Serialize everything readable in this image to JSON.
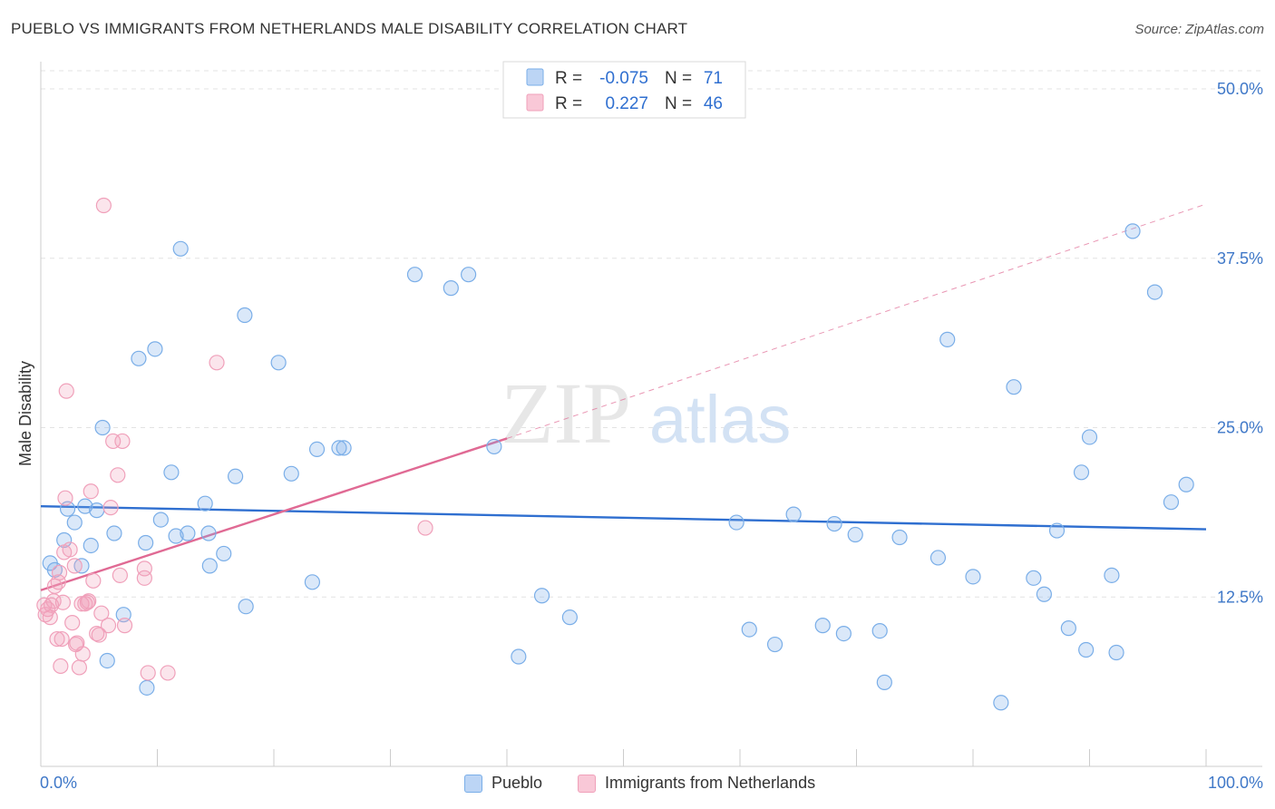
{
  "title": "PUEBLO VS IMMIGRANTS FROM NETHERLANDS MALE DISABILITY CORRELATION CHART",
  "source": "Source: ZipAtlas.com",
  "watermark": {
    "zip": "ZIP",
    "atlas": "atlas"
  },
  "stats": [
    {
      "r_label": "R =",
      "r_value": "-0.075",
      "n_label": "N =",
      "n_value": "71",
      "color": "#7aaee8"
    },
    {
      "r_label": "R =",
      "r_value": "0.227",
      "n_label": "N =",
      "n_value": "46",
      "color": "#f0a0ba"
    }
  ],
  "chart_data": {
    "type": "scatter",
    "xlabel": "",
    "ylabel": "Male Disability",
    "xlim": [
      0,
      100
    ],
    "ylim": [
      0,
      50
    ],
    "x_tick_labels": [
      "0.0%",
      "100.0%"
    ],
    "y_ticks": [
      12.5,
      25.0,
      37.5,
      50.0
    ],
    "y_tick_labels": [
      "12.5%",
      "25.0%",
      "37.5%",
      "50.0%"
    ],
    "grid": true,
    "legend": {
      "placement": "bottom-center"
    },
    "series": [
      {
        "name": "Pueblo",
        "color": "#7aaee8",
        "line_color": "#2f6fd0",
        "trend": {
          "x": [
            0,
            100
          ],
          "y": [
            19.2,
            17.5
          ]
        },
        "points": [
          [
            0.8,
            15.0
          ],
          [
            1.2,
            14.5
          ],
          [
            2.0,
            16.7
          ],
          [
            2.3,
            19.0
          ],
          [
            2.9,
            18.0
          ],
          [
            3.5,
            14.8
          ],
          [
            3.8,
            19.2
          ],
          [
            4.3,
            16.3
          ],
          [
            4.8,
            18.9
          ],
          [
            5.3,
            25.0
          ],
          [
            5.7,
            7.8
          ],
          [
            6.3,
            17.2
          ],
          [
            7.1,
            11.2
          ],
          [
            8.4,
            30.1
          ],
          [
            9.0,
            16.5
          ],
          [
            9.1,
            5.8
          ],
          [
            9.8,
            30.8
          ],
          [
            10.3,
            18.2
          ],
          [
            11.2,
            21.7
          ],
          [
            11.6,
            17.0
          ],
          [
            12.0,
            38.2
          ],
          [
            12.6,
            17.2
          ],
          [
            14.1,
            19.4
          ],
          [
            14.5,
            14.8
          ],
          [
            14.4,
            17.2
          ],
          [
            15.7,
            15.7
          ],
          [
            16.7,
            21.4
          ],
          [
            17.6,
            11.8
          ],
          [
            17.5,
            33.3
          ],
          [
            20.4,
            29.8
          ],
          [
            21.5,
            21.6
          ],
          [
            23.3,
            13.6
          ],
          [
            23.7,
            23.4
          ],
          [
            25.6,
            23.5
          ],
          [
            26.0,
            23.5
          ],
          [
            32.1,
            36.3
          ],
          [
            35.2,
            35.3
          ],
          [
            36.7,
            36.3
          ],
          [
            38.9,
            23.6
          ],
          [
            41.0,
            8.1
          ],
          [
            43.0,
            12.6
          ],
          [
            45.4,
            11.0
          ],
          [
            59.7,
            18.0
          ],
          [
            60.8,
            10.1
          ],
          [
            63.0,
            9.0
          ],
          [
            64.6,
            18.6
          ],
          [
            67.1,
            10.4
          ],
          [
            68.1,
            17.9
          ],
          [
            68.9,
            9.8
          ],
          [
            69.9,
            17.1
          ],
          [
            72.0,
            10.0
          ],
          [
            72.4,
            6.2
          ],
          [
            73.7,
            16.9
          ],
          [
            77.0,
            15.4
          ],
          [
            77.8,
            31.5
          ],
          [
            80.0,
            14.0
          ],
          [
            82.4,
            4.7
          ],
          [
            83.5,
            28.0
          ],
          [
            85.2,
            13.9
          ],
          [
            86.1,
            12.7
          ],
          [
            87.2,
            17.4
          ],
          [
            88.2,
            10.2
          ],
          [
            89.3,
            21.7
          ],
          [
            89.7,
            8.6
          ],
          [
            90.0,
            24.3
          ],
          [
            91.9,
            14.1
          ],
          [
            92.3,
            8.4
          ],
          [
            93.7,
            39.5
          ],
          [
            95.6,
            35.0
          ],
          [
            97.0,
            19.5
          ],
          [
            98.3,
            20.8
          ]
        ]
      },
      {
        "name": "Immigrants from Netherlands",
        "color": "#f0a0ba",
        "line_color": "#e06a94",
        "trend": {
          "x": [
            0,
            40
          ],
          "y": [
            13.0,
            24.2
          ]
        },
        "trend_extension": {
          "x": [
            40,
            100
          ],
          "y": [
            24.2,
            41.5
          ]
        },
        "points": [
          [
            0.3,
            11.9
          ],
          [
            0.4,
            11.2
          ],
          [
            0.6,
            11.6
          ],
          [
            0.8,
            11.0
          ],
          [
            0.9,
            11.9
          ],
          [
            1.1,
            12.2
          ],
          [
            1.2,
            13.3
          ],
          [
            1.4,
            9.4
          ],
          [
            1.5,
            13.6
          ],
          [
            1.6,
            14.3
          ],
          [
            1.7,
            7.4
          ],
          [
            1.8,
            9.4
          ],
          [
            1.9,
            12.1
          ],
          [
            2.0,
            15.8
          ],
          [
            2.1,
            19.8
          ],
          [
            2.2,
            27.7
          ],
          [
            2.5,
            16.0
          ],
          [
            2.7,
            10.6
          ],
          [
            2.9,
            14.8
          ],
          [
            3.0,
            9.0
          ],
          [
            3.1,
            9.1
          ],
          [
            3.3,
            7.3
          ],
          [
            3.5,
            12.0
          ],
          [
            3.6,
            8.3
          ],
          [
            3.8,
            12.0
          ],
          [
            4.0,
            12.1
          ],
          [
            4.1,
            12.2
          ],
          [
            4.3,
            20.3
          ],
          [
            4.5,
            13.7
          ],
          [
            4.8,
            9.8
          ],
          [
            5.0,
            9.7
          ],
          [
            5.2,
            11.3
          ],
          [
            5.4,
            41.4
          ],
          [
            5.8,
            10.4
          ],
          [
            6.0,
            19.1
          ],
          [
            6.2,
            24.0
          ],
          [
            6.6,
            21.5
          ],
          [
            6.8,
            14.1
          ],
          [
            7.0,
            24.0
          ],
          [
            7.2,
            10.4
          ],
          [
            8.9,
            14.6
          ],
          [
            8.9,
            13.9
          ],
          [
            9.2,
            6.9
          ],
          [
            10.9,
            6.9
          ],
          [
            15.1,
            29.8
          ],
          [
            33.0,
            17.6
          ]
        ]
      }
    ]
  }
}
